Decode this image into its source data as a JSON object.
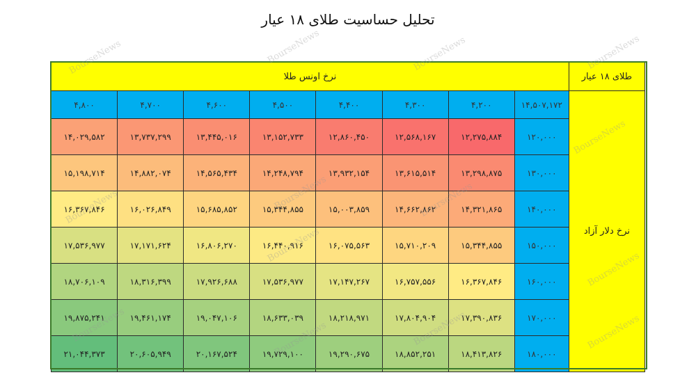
{
  "title": "تحلیل حساسیت طلای ۱۸ عیار",
  "watermark": "BourseNews",
  "table": {
    "corner_label": "طلای ۱۸ عیار",
    "column_group_label": "نرخ اونس طلا",
    "row_group_label": "نرخ دلار آزاد",
    "base_value": "۱۴,۵۰۷,۱۷۲",
    "columns": [
      "۴,۲۰۰",
      "۴,۳۰۰",
      "۴,۴۰۰",
      "۴,۵۰۰",
      "۴,۶۰۰",
      "۴,۷۰۰",
      "۴,۸۰۰"
    ],
    "rows": [
      {
        "dollar": "۱۲۰,۰۰۰",
        "values": [
          "۱۲,۲۷۵,۸۸۴",
          "۱۲,۵۶۸,۱۶۷",
          "۱۲,۸۶۰,۴۵۰",
          "۱۳,۱۵۲,۷۳۳",
          "۱۳,۴۴۵,۰۱۶",
          "۱۳,۷۳۷,۲۹۹",
          "۱۴,۰۲۹,۵۸۲"
        ]
      },
      {
        "dollar": "۱۳۰,۰۰۰",
        "values": [
          "۱۳,۲۹۸,۸۷۵",
          "۱۳,۶۱۵,۵۱۴",
          "۱۳,۹۳۲,۱۵۴",
          "۱۴,۲۴۸,۷۹۴",
          "۱۴,۵۶۵,۴۳۴",
          "۱۴,۸۸۲,۰۷۴",
          "۱۵,۱۹۸,۷۱۴"
        ]
      },
      {
        "dollar": "۱۴۰,۰۰۰",
        "values": [
          "۱۴,۳۲۱,۸۶۵",
          "۱۴,۶۶۲,۸۶۲",
          "۱۵,۰۰۳,۸۵۹",
          "۱۵,۳۴۴,۸۵۵",
          "۱۵,۶۸۵,۸۵۲",
          "۱۶,۰۲۶,۸۴۹",
          "۱۶,۳۶۷,۸۴۶"
        ]
      },
      {
        "dollar": "۱۵۰,۰۰۰",
        "values": [
          "۱۵,۳۴۴,۸۵۵",
          "۱۵,۷۱۰,۲۰۹",
          "۱۶,۰۷۵,۵۶۳",
          "۱۶,۴۴۰,۹۱۶",
          "۱۶,۸۰۶,۲۷۰",
          "۱۷,۱۷۱,۶۲۴",
          "۱۷,۵۳۶,۹۷۷"
        ]
      },
      {
        "dollar": "۱۶۰,۰۰۰",
        "values": [
          "۱۶,۳۶۷,۸۴۶",
          "۱۶,۷۵۷,۵۵۶",
          "۱۷,۱۴۷,۲۶۷",
          "۱۷,۵۳۶,۹۷۷",
          "۱۷,۹۲۶,۶۸۸",
          "۱۸,۳۱۶,۳۹۹",
          "۱۸,۷۰۶,۱۰۹"
        ]
      },
      {
        "dollar": "۱۷۰,۰۰۰",
        "values": [
          "۱۷,۳۹۰,۸۳۶",
          "۱۷,۸۰۴,۹۰۴",
          "۱۸,۲۱۸,۹۷۱",
          "۱۸,۶۳۳,۰۳۹",
          "۱۹,۰۴۷,۱۰۶",
          "۱۹,۴۶۱,۱۷۴",
          "۱۹,۸۷۵,۲۴۱"
        ]
      },
      {
        "dollar": "۱۸۰,۰۰۰",
        "values": [
          "۱۸,۴۱۳,۸۲۶",
          "۱۸,۸۵۲,۲۵۱",
          "۱۹,۲۹۰,۶۷۵",
          "۱۹,۷۲۹,۱۰۰",
          "۲۰,۱۶۷,۵۲۴",
          "۲۰,۶۰۵,۹۴۹",
          "۲۱,۰۴۴,۳۷۳"
        ]
      }
    ]
  },
  "colors": {
    "header_yellow": "#ffff00",
    "header_blue": "#00aeef",
    "scale_low": "#f8696b",
    "scale_mid": "#ffeb84",
    "scale_high": "#63be7b"
  }
}
